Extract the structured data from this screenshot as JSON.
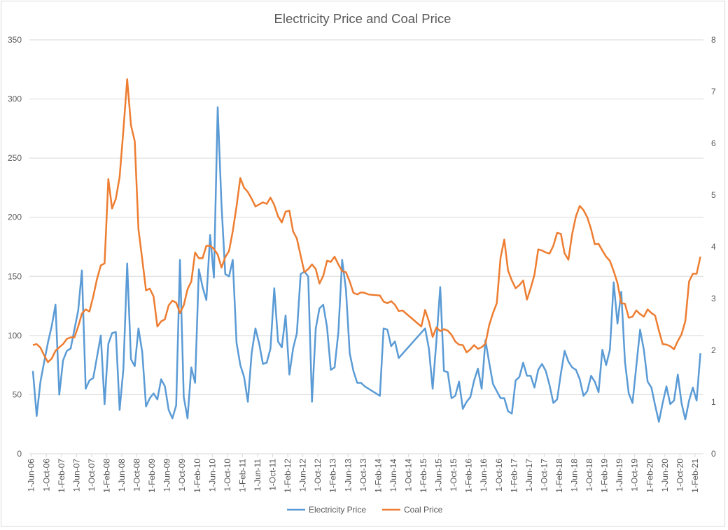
{
  "chart_data": {
    "type": "line",
    "title": "Electricity Price and Coal Price",
    "y_left": {
      "ylim": [
        0,
        350
      ],
      "ticks": [
        "0",
        "50",
        "100",
        "150",
        "200",
        "250",
        "300",
        "350"
      ]
    },
    "y_right": {
      "ylim": [
        0,
        8
      ],
      "ticks": [
        "0",
        "1",
        "2",
        "3",
        "4",
        "5",
        "6",
        "7",
        "8"
      ]
    },
    "grid": true,
    "legend_position": "bottom",
    "x_tick_labels": [
      "1-Jun-06",
      "1-Oct-06",
      "1-Feb-07",
      "1-Jun-07",
      "1-Oct-07",
      "1-Feb-08",
      "1-Jun-08",
      "1-Oct-08",
      "1-Feb-09",
      "1-Jun-09",
      "1-Oct-09",
      "1-Feb-10",
      "1-Jun-10",
      "1-Oct-10",
      "1-Feb-11",
      "1-Jun-11",
      "1-Oct-11",
      "1-Feb-12",
      "1-Jun-12",
      "1-Oct-12",
      "1-Feb-13",
      "1-Jun-13",
      "1-Oct-13",
      "1-Feb-14",
      "1-Jun-14",
      "1-Oct-14",
      "1-Feb-15",
      "1-Jun-15",
      "1-Oct-15",
      "1-Feb-16",
      "1-Jun-16",
      "1-Oct-16",
      "1-Feb-17",
      "1-Jun-17",
      "1-Oct-17",
      "1-Feb-18",
      "1-Jun-18",
      "1-Oct-18",
      "1-Feb-19",
      "1-Jun-19",
      "1-Oct-19",
      "1-Feb-20",
      "1-Jun-20",
      "1-Oct-20",
      "1-Feb-21"
    ],
    "x": [
      "2006-06",
      "2006-07",
      "2006-08",
      "2006-09",
      "2006-10",
      "2006-11",
      "2006-12",
      "2007-01",
      "2007-02",
      "2007-03",
      "2007-04",
      "2007-05",
      "2007-06",
      "2007-07",
      "2007-08",
      "2007-09",
      "2007-10",
      "2007-11",
      "2007-12",
      "2008-01",
      "2008-02",
      "2008-03",
      "2008-04",
      "2008-05",
      "2008-06",
      "2008-07",
      "2008-08",
      "2008-09",
      "2008-10",
      "2008-11",
      "2008-12",
      "2009-01",
      "2009-02",
      "2009-03",
      "2009-04",
      "2009-05",
      "2009-06",
      "2009-07",
      "2009-08",
      "2009-09",
      "2009-10",
      "2009-11",
      "2009-12",
      "2010-01",
      "2010-02",
      "2010-03",
      "2010-04",
      "2010-05",
      "2010-06",
      "2010-07",
      "2010-08",
      "2010-09",
      "2010-10",
      "2010-11",
      "2010-12",
      "2011-01",
      "2011-02",
      "2011-03",
      "2011-04",
      "2011-05",
      "2011-06",
      "2011-07",
      "2011-08",
      "2011-09",
      "2011-10",
      "2011-11",
      "2011-12",
      "2012-01",
      "2012-02",
      "2012-03",
      "2012-04",
      "2012-05",
      "2012-06",
      "2012-07",
      "2012-08",
      "2012-09",
      "2012-10",
      "2012-11",
      "2012-12",
      "2013-01",
      "2013-02",
      "2013-03",
      "2013-04",
      "2013-05",
      "2013-06",
      "2013-07",
      "2013-08",
      "2013-09",
      "2013-10",
      "2013-11",
      "2013-12",
      "2014-01",
      "2014-02",
      "2014-03",
      "2014-04",
      "2014-05",
      "2014-06",
      "2014-07",
      "2014-08",
      "2014-09",
      "2014-10",
      "2014-11",
      "2014-12",
      "2015-01",
      "2015-02",
      "2015-03",
      "2015-04",
      "2015-05",
      "2015-06",
      "2015-07",
      "2015-08",
      "2015-09",
      "2015-10",
      "2015-11",
      "2015-12",
      "2016-01",
      "2016-02",
      "2016-03",
      "2016-04",
      "2016-05",
      "2016-06",
      "2016-07",
      "2016-08",
      "2016-09",
      "2016-10",
      "2016-11",
      "2016-12",
      "2017-01",
      "2017-02",
      "2017-03",
      "2017-04",
      "2017-05",
      "2017-06",
      "2017-07",
      "2017-08",
      "2017-09",
      "2017-10",
      "2017-11",
      "2017-12",
      "2018-01",
      "2018-02",
      "2018-03",
      "2018-04",
      "2018-05",
      "2018-06",
      "2018-07",
      "2018-08",
      "2018-09",
      "2018-10",
      "2018-11",
      "2018-12",
      "2019-01",
      "2019-02",
      "2019-03",
      "2019-04",
      "2019-05",
      "2019-06",
      "2019-07",
      "2019-08",
      "2019-09",
      "2019-10",
      "2019-11",
      "2019-12",
      "2020-01",
      "2020-02",
      "2020-03",
      "2020-04",
      "2020-05",
      "2020-06",
      "2020-07",
      "2020-08",
      "2020-09",
      "2020-10",
      "2020-11",
      "2020-12",
      "2021-01",
      "2021-02",
      "2021-03"
    ],
    "series": [
      {
        "name": "Electricity Price",
        "axis": "left",
        "color": "#5B9BD5",
        "values": [
          70,
          32,
          61,
          78,
          94,
          108,
          126,
          50,
          79,
          87,
          89,
          105,
          121,
          155,
          55,
          62,
          64,
          82,
          100,
          42,
          93,
          102,
          103,
          37,
          72,
          161,
          80,
          74,
          106,
          86,
          40,
          47,
          51,
          46,
          63,
          57,
          37,
          30,
          41,
          164,
          48,
          30,
          73,
          60,
          156,
          141,
          130,
          185,
          149,
          293,
          211,
          152,
          150,
          164,
          94,
          75,
          65,
          44,
          85,
          106,
          93,
          76,
          77,
          89,
          140,
          95,
          90,
          117,
          67,
          89,
          102,
          152,
          154,
          150,
          44,
          106,
          123,
          126,
          107,
          71,
          73,
          103,
          164,
          139,
          85,
          70,
          60,
          60,
          57,
          55,
          null,
          null,
          49,
          106,
          105,
          91,
          95,
          81,
          null,
          null,
          null,
          null,
          null,
          null,
          106,
          89,
          55,
          96,
          141,
          70,
          69,
          47,
          49,
          61,
          38,
          44,
          48,
          62,
          72,
          55,
          96,
          77,
          59,
          53,
          47,
          47,
          36,
          34,
          62,
          65,
          77,
          66,
          66,
          56,
          71,
          76,
          70,
          58,
          43,
          46,
          68,
          87,
          78,
          73,
          71,
          63,
          49,
          53,
          66,
          61,
          52,
          88,
          75,
          88,
          145,
          110,
          137,
          78,
          51,
          43,
          74,
          105,
          88,
          61,
          56,
          41,
          27,
          43,
          57,
          42,
          45,
          67,
          43,
          29,
          45,
          56,
          45,
          85
        ]
      },
      {
        "name": "Coal Price",
        "axis": "right",
        "color": "#ED7D31",
        "values": [
          2.1,
          2.12,
          2.05,
          1.9,
          1.77,
          1.84,
          1.99,
          2.06,
          2.12,
          2.22,
          2.25,
          2.25,
          2.46,
          2.71,
          2.79,
          2.75,
          3.04,
          3.38,
          3.64,
          3.68,
          5.31,
          4.74,
          4.93,
          5.35,
          6.26,
          7.24,
          6.35,
          6.04,
          4.34,
          3.76,
          3.16,
          3.19,
          3.04,
          2.46,
          2.56,
          2.6,
          2.87,
          2.96,
          2.92,
          2.72,
          2.87,
          3.18,
          3.33,
          3.89,
          3.78,
          3.78,
          4.02,
          4.02,
          3.96,
          3.85,
          3.6,
          3.8,
          3.92,
          4.3,
          4.78,
          5.33,
          5.14,
          5.06,
          4.93,
          4.78,
          4.82,
          4.86,
          4.83,
          4.95,
          4.81,
          4.59,
          4.47,
          4.68,
          4.7,
          4.3,
          4.16,
          3.83,
          3.51,
          3.57,
          3.66,
          3.57,
          3.29,
          3.44,
          3.73,
          3.71,
          3.81,
          3.66,
          3.53,
          3.51,
          3.33,
          3.11,
          3.08,
          3.12,
          3.11,
          3.08,
          null,
          null,
          3.06,
          2.94,
          2.91,
          2.95,
          2.88,
          2.76,
          2.77,
          null,
          null,
          null,
          null,
          2.46,
          2.78,
          2.56,
          2.26,
          2.44,
          2.37,
          2.41,
          2.38,
          2.3,
          2.17,
          2.11,
          2.1,
          1.96,
          2.02,
          2.1,
          2.03,
          2.06,
          2.13,
          2.49,
          2.72,
          2.91,
          3.79,
          4.14,
          3.54,
          3.35,
          3.2,
          3.26,
          3.35,
          2.98,
          3.2,
          3.46,
          3.95,
          3.93,
          3.89,
          3.87,
          4.02,
          4.27,
          4.25,
          3.87,
          3.75,
          4.25,
          4.59,
          4.79,
          4.71,
          4.57,
          4.34,
          4.05,
          4.06,
          3.93,
          3.81,
          3.73,
          3.53,
          3.3,
          2.91,
          2.9,
          2.63,
          2.65,
          2.77,
          2.7,
          2.65,
          2.79,
          2.72,
          2.67,
          2.38,
          2.12,
          2.11,
          2.08,
          2.02,
          2.18,
          2.31,
          2.56,
          3.33,
          3.48,
          3.48,
          3.81
        ]
      }
    ]
  }
}
